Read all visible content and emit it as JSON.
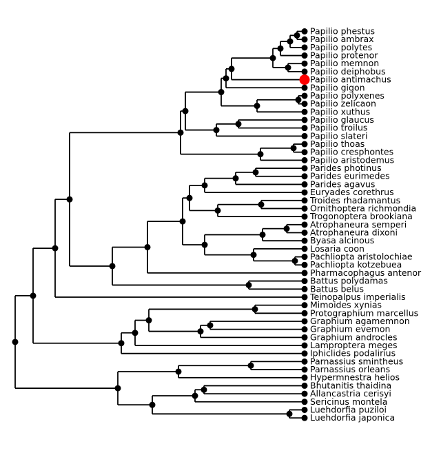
{
  "tree": {
    "leaves": [
      "Papilio phestus",
      "Papilio ambrax",
      "Papilio polytes",
      "Papilio protenor",
      "Papilio memnon",
      "Papilio deiphobus",
      "Papilio antimachus",
      "Papilio gigon",
      "Papilio polyxenes",
      "Papilio zelicaon",
      "Papilio xuthus",
      "Papilio glaucus",
      "Papilio troilus",
      "Papilio slateri",
      "Papilio thoas",
      "Papilio cresphontes",
      "Papilio aristodemus",
      "Parides photinus",
      "Parides eurimedes",
      "Parides agavus",
      "Euryades corethrus",
      "Troides rhadamantus",
      "Ornithoptera richmondia",
      "Trogonoptera brookiana",
      "Atrophaneura semperi",
      "Atrophaneura dixoni",
      "Byasa alcinous",
      "Losaria coon",
      "Pachliopta aristolochiae",
      "Pachliopta kotzebuea",
      "Pharmacophagus antenor",
      "Battus polydamas",
      "Battus belus",
      "Teinopalpus imperialis",
      "Mimoides xynias",
      "Protographium marcellus",
      "Graphium agamemnon",
      "Graphium evemon",
      "Graphium androcles",
      "Lamproptera meges",
      "Iphiclides podalirius",
      "Parnassius smintheus",
      "Parnassius orleans",
      "Hypermnestra helios",
      "Bhutanitis thaidina",
      "Allancastria cerisyi",
      "Sericinus montela",
      "Luehdorfia puziloi",
      "Luehdorfia japonica"
    ],
    "highlighted_leaf": "Papilio antimachus",
    "colors": {
      "edge": "#000000",
      "node": "#000000",
      "highlight": "#ff0000"
    }
  }
}
